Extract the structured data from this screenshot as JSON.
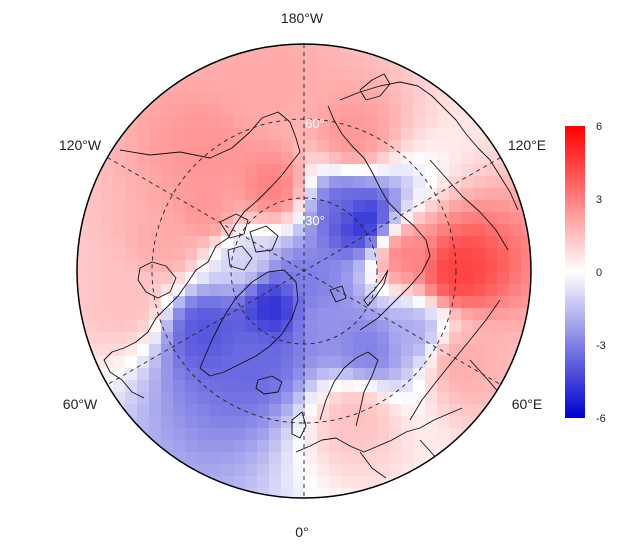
{
  "map": {
    "projection": "north-polar-stereographic",
    "lon_labels": {
      "top": "180°W",
      "bottom": "0°",
      "upper_left": "120°W",
      "upper_right": "120°E",
      "lower_left": "60°W",
      "lower_right": "60°E"
    },
    "lat_labels": {
      "inner": "30°",
      "outer": "60°"
    },
    "anomaly_field": [
      {
        "lon": -160,
        "lat": 55,
        "value": 3
      },
      {
        "lon": -120,
        "lat": 45,
        "value": 2.5
      },
      {
        "lon": -100,
        "lat": 35,
        "value": 2
      },
      {
        "lon": -140,
        "lat": 30,
        "value": 2.5
      },
      {
        "lon": 160,
        "lat": 35,
        "value": 2.5
      },
      {
        "lon": -170,
        "lat": 15,
        "value": 2
      },
      {
        "lon": 90,
        "lat": 30,
        "value": 4.5
      },
      {
        "lon": 100,
        "lat": 50,
        "value": 3
      },
      {
        "lon": 130,
        "lat": 60,
        "value": -5
      },
      {
        "lon": 150,
        "lat": 60,
        "value": -3.5
      },
      {
        "lon": -40,
        "lat": 72,
        "value": -5
      },
      {
        "lon": -60,
        "lat": 45,
        "value": -4
      },
      {
        "lon": -30,
        "lat": 50,
        "value": -3.5
      },
      {
        "lon": 40,
        "lat": 50,
        "value": -3
      },
      {
        "lon": 60,
        "lat": 40,
        "value": -2
      },
      {
        "lon": 20,
        "lat": 70,
        "value": -2.5
      },
      {
        "lon": 0,
        "lat": 85,
        "value": -3
      },
      {
        "lon": -100,
        "lat": 65,
        "value": -1
      },
      {
        "lon": 20,
        "lat": 30,
        "value": 1.5
      },
      {
        "lon": -80,
        "lat": 20,
        "value": 1.5
      },
      {
        "lon": 60,
        "lat": 20,
        "value": 2
      }
    ],
    "colors": {
      "negative": "#0000cc",
      "neutral": "#ffffff",
      "positive": "#ff0000"
    }
  },
  "colorbar": {
    "ticks": [
      "6",
      "3",
      "0",
      "-3",
      "-6"
    ],
    "range": [
      -6,
      6
    ]
  }
}
